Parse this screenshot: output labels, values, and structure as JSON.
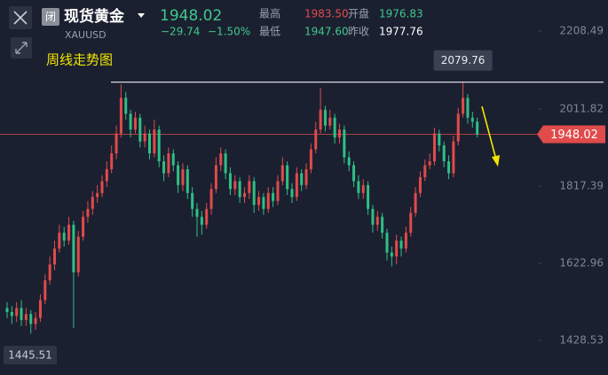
{
  "header": {
    "badge": "闭",
    "name": "现货黄金",
    "symbol": "XAUUSD",
    "price": "1948.02",
    "change": "−29.74",
    "change_pct": "−1.50%",
    "stats": [
      {
        "label": "最高",
        "value": "1983.50"
      },
      {
        "label": "开盘",
        "value": "1976.83"
      },
      {
        "label": "最低",
        "value": "1947.60"
      },
      {
        "label": "昨收",
        "value": "1977.76"
      }
    ]
  },
  "chart_data": {
    "type": "candlestick",
    "title": "周线走势图",
    "up_color": "#e04b4b",
    "down_color": "#2fbf86",
    "grid": false,
    "ylim": [
      1341.3,
      2286.7
    ],
    "yticks": [
      2208.49,
      2011.82,
      1817.39,
      1622.96,
      1428.53
    ],
    "open": [
      1510,
      1500,
      1490,
      1510,
      1480,
      1495,
      1470,
      1485,
      1530,
      1580,
      1620,
      1660,
      1700,
      1680,
      1720,
      1600,
      1690,
      1740,
      1760,
      1790,
      1800,
      1830,
      1860,
      1900,
      1950,
      2040,
      2000,
      1960,
      1990,
      1930,
      1950,
      1900,
      1960,
      1880,
      1850,
      1900,
      1870,
      1820,
      1860,
      1800,
      1760,
      1740,
      1720,
      1760,
      1810,
      1870,
      1900,
      1850,
      1810,
      1830,
      1790,
      1800,
      1830,
      1770,
      1790,
      1760,
      1800,
      1780,
      1830,
      1870,
      1810,
      1790,
      1850,
      1820,
      1860,
      1910,
      1960,
      2010,
      1970,
      1990,
      1940,
      1960,
      1890,
      1870,
      1830,
      1800,
      1820,
      1760,
      1720,
      1740,
      1700,
      1650,
      1640,
      1680,
      1660,
      1700,
      1750,
      1800,
      1840,
      1870,
      1880,
      1950,
      1920,
      1880,
      1850,
      1930,
      2000,
      2040,
      1990,
      1980
    ],
    "high": [
      1525,
      1515,
      1525,
      1530,
      1510,
      1505,
      1500,
      1545,
      1595,
      1640,
      1680,
      1720,
      1715,
      1740,
      1730,
      1705,
      1755,
      1780,
      1805,
      1820,
      1845,
      1880,
      1920,
      1970,
      2074,
      2055,
      2010,
      2005,
      2000,
      1970,
      1960,
      1985,
      1970,
      1895,
      1915,
      1910,
      1880,
      1875,
      1870,
      1815,
      1775,
      1755,
      1775,
      1825,
      1890,
      1915,
      1910,
      1865,
      1845,
      1840,
      1815,
      1845,
      1840,
      1805,
      1800,
      1815,
      1815,
      1845,
      1890,
      1880,
      1825,
      1865,
      1860,
      1875,
      1925,
      1980,
      2065,
      2020,
      2010,
      2000,
      1975,
      1970,
      1905,
      1880,
      1845,
      1835,
      1830,
      1770,
      1755,
      1750,
      1710,
      1665,
      1695,
      1690,
      1715,
      1765,
      1815,
      1855,
      1885,
      1900,
      1965,
      1960,
      1930,
      1895,
      1945,
      2015,
      2079.76,
      2050,
      2005,
      1990
    ],
    "low": [
      1485,
      1470,
      1475,
      1465,
      1465,
      1445.51,
      1455,
      1475,
      1520,
      1570,
      1605,
      1650,
      1665,
      1670,
      1460,
      1590,
      1680,
      1725,
      1745,
      1775,
      1790,
      1815,
      1850,
      1885,
      1940,
      1985,
      1940,
      1950,
      1915,
      1915,
      1885,
      1890,
      1865,
      1830,
      1840,
      1855,
      1800,
      1805,
      1785,
      1740,
      1690,
      1695,
      1710,
      1745,
      1800,
      1855,
      1835,
      1795,
      1795,
      1775,
      1775,
      1785,
      1750,
      1755,
      1745,
      1750,
      1765,
      1770,
      1820,
      1795,
      1775,
      1780,
      1805,
      1810,
      1850,
      1900,
      1950,
      1955,
      1960,
      1925,
      1925,
      1875,
      1855,
      1815,
      1785,
      1785,
      1745,
      1700,
      1705,
      1685,
      1630,
      1615,
      1620,
      1640,
      1650,
      1690,
      1740,
      1790,
      1830,
      1860,
      1870,
      1905,
      1865,
      1835,
      1840,
      1920,
      1990,
      1975,
      1965,
      1940
    ],
    "close": [
      1500,
      1490,
      1510,
      1480,
      1495,
      1470,
      1485,
      1530,
      1580,
      1620,
      1660,
      1700,
      1680,
      1720,
      1600,
      1690,
      1740,
      1760,
      1790,
      1800,
      1830,
      1860,
      1900,
      1950,
      2040,
      2000,
      1960,
      1990,
      1930,
      1950,
      1900,
      1960,
      1880,
      1850,
      1900,
      1870,
      1820,
      1860,
      1800,
      1760,
      1740,
      1720,
      1760,
      1810,
      1870,
      1900,
      1850,
      1810,
      1830,
      1790,
      1800,
      1830,
      1770,
      1790,
      1760,
      1800,
      1780,
      1830,
      1870,
      1810,
      1790,
      1850,
      1820,
      1860,
      1910,
      1960,
      2010,
      1970,
      1990,
      1940,
      1960,
      1890,
      1870,
      1830,
      1800,
      1820,
      1760,
      1720,
      1740,
      1700,
      1650,
      1640,
      1680,
      1660,
      1700,
      1750,
      1800,
      1840,
      1870,
      1880,
      1950,
      1920,
      1880,
      1850,
      1930,
      2000,
      2040,
      1990,
      1980,
      1948.02
    ]
  }
}
